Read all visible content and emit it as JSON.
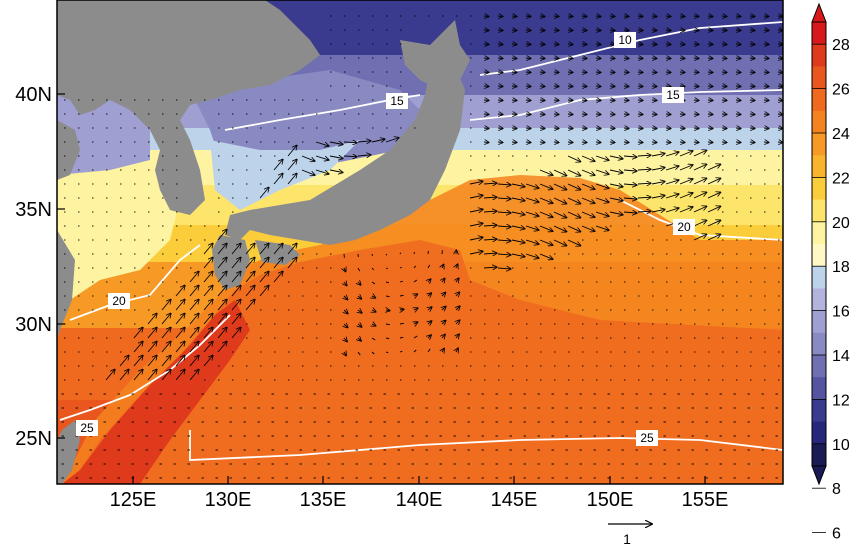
{
  "map": {
    "lon_labels": [
      "125E",
      "130E",
      "135E",
      "140E",
      "145E",
      "150E",
      "155E"
    ],
    "lat_labels": [
      "25N",
      "30N",
      "35N",
      "40N"
    ],
    "contour_labels": [
      "10",
      "15",
      "15",
      "20",
      "20",
      "25",
      "25"
    ],
    "reference_vector_label": "1"
  },
  "colorbar": {
    "labels": [
      "28",
      "26",
      "24",
      "22",
      "20",
      "18",
      "16",
      "14",
      "12",
      "10",
      "8",
      "6"
    ],
    "colors": [
      "#d7191c",
      "#e03a1c",
      "#e9561e",
      "#ef6a1f",
      "#f4821f",
      "#f79a25",
      "#f9b42c",
      "#fbcd3a",
      "#fce56a",
      "#fdf3a0",
      "#fff7c4",
      "#bcd3ea",
      "#b3b3dd",
      "#9f9fd1",
      "#8a8ac3",
      "#6f6fb2",
      "#5454a0",
      "#3a3a8e",
      "#26267a",
      "#1a1a55"
    ]
  },
  "colors": {
    "land": "#8c8c8c",
    "contour_line": "#ffffff",
    "vector": "#000000"
  }
}
